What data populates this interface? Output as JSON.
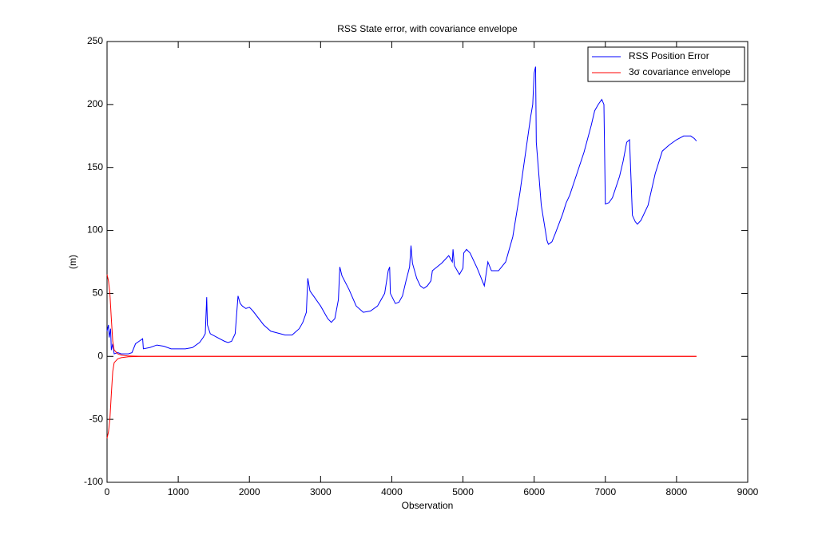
{
  "chart_data": {
    "type": "line",
    "title": "RSS State error, with covariance envelope",
    "xlabel": "Observation",
    "ylabel": "(m)",
    "xlim": [
      0,
      9000
    ],
    "xticks": [
      0,
      1000,
      2000,
      3000,
      4000,
      5000,
      6000,
      7000,
      8000,
      9000
    ],
    "ylim": [
      -100,
      250
    ],
    "yticks": [
      -100,
      -50,
      0,
      50,
      100,
      150,
      200,
      250
    ],
    "grid": false,
    "legend": "northeast",
    "series": [
      {
        "name": "RSS Position Error",
        "color": "#0000ff",
        "x": [
          0,
          20,
          30,
          50,
          60,
          80,
          100,
          150,
          200,
          300,
          350,
          400,
          450,
          500,
          510,
          600,
          700,
          800,
          900,
          1000,
          1100,
          1200,
          1300,
          1350,
          1380,
          1400,
          1410,
          1450,
          1550,
          1650,
          1700,
          1750,
          1800,
          1840,
          1870,
          1900,
          1950,
          2000,
          2050,
          2200,
          2300,
          2500,
          2600,
          2700,
          2750,
          2800,
          2820,
          2850,
          2900,
          3000,
          3100,
          3150,
          3200,
          3250,
          3270,
          3300,
          3400,
          3500,
          3600,
          3700,
          3800,
          3900,
          3950,
          3970,
          3980,
          4050,
          4100,
          4150,
          4200,
          4250,
          4270,
          4290,
          4350,
          4400,
          4450,
          4500,
          4550,
          4570,
          4700,
          4800,
          4850,
          4860,
          4880,
          4950,
          5000,
          5010,
          5050,
          5100,
          5200,
          5300,
          5350,
          5400,
          5500,
          5600,
          5700,
          5800,
          5900,
          5950,
          5980,
          6000,
          6020,
          6030,
          6100,
          6180,
          6200,
          6250,
          6300,
          6400,
          6450,
          6500,
          6600,
          6700,
          6800,
          6850,
          6900,
          6950,
          6980,
          7000,
          7050,
          7100,
          7200,
          7250,
          7300,
          7340,
          7380,
          7420,
          7450,
          7500,
          7600,
          7700,
          7800,
          7900,
          8000,
          8100,
          8200,
          8250,
          8280
        ],
        "values": [
          20,
          25,
          15,
          22,
          5,
          10,
          2,
          3,
          2,
          2,
          3,
          10,
          12,
          14,
          6,
          7,
          9,
          8,
          6,
          6,
          6,
          7,
          11,
          15,
          18,
          47,
          25,
          18,
          15,
          12,
          11,
          12,
          18,
          48,
          42,
          40,
          38,
          39,
          36,
          25,
          20,
          17,
          17,
          22,
          27,
          35,
          62,
          52,
          48,
          40,
          30,
          27,
          30,
          45,
          71,
          64,
          53,
          40,
          35,
          36,
          40,
          50,
          68,
          71,
          50,
          42,
          43,
          48,
          60,
          71,
          88,
          74,
          62,
          56,
          54,
          56,
          60,
          68,
          74,
          80,
          75,
          85,
          72,
          65,
          70,
          82,
          85,
          82,
          70,
          56,
          75,
          68,
          68,
          75,
          95,
          130,
          170,
          190,
          200,
          225,
          230,
          170,
          120,
          92,
          89,
          91,
          98,
          113,
          122,
          128,
          145,
          162,
          183,
          195,
          200,
          204,
          200,
          121,
          122,
          126,
          143,
          155,
          170,
          172,
          112,
          107,
          105,
          108,
          120,
          145,
          163,
          168,
          172,
          175,
          175,
          173,
          171
        ]
      },
      {
        "name": "3σ covariance envelope",
        "color": "#ff0000",
        "x": [
          0,
          20,
          40,
          60,
          80,
          100,
          150,
          200,
          300,
          500,
          8280
        ],
        "values": [
          65,
          60,
          50,
          30,
          12,
          5,
          2,
          1,
          0.3,
          0,
          0
        ]
      },
      {
        "color": "#ff0000",
        "x": [
          0,
          20,
          40,
          60,
          80,
          100,
          150,
          200,
          300,
          500,
          8280
        ],
        "values": [
          -65,
          -60,
          -50,
          -30,
          -12,
          -5,
          -2,
          -1,
          -0.3,
          0,
          0
        ]
      }
    ]
  }
}
